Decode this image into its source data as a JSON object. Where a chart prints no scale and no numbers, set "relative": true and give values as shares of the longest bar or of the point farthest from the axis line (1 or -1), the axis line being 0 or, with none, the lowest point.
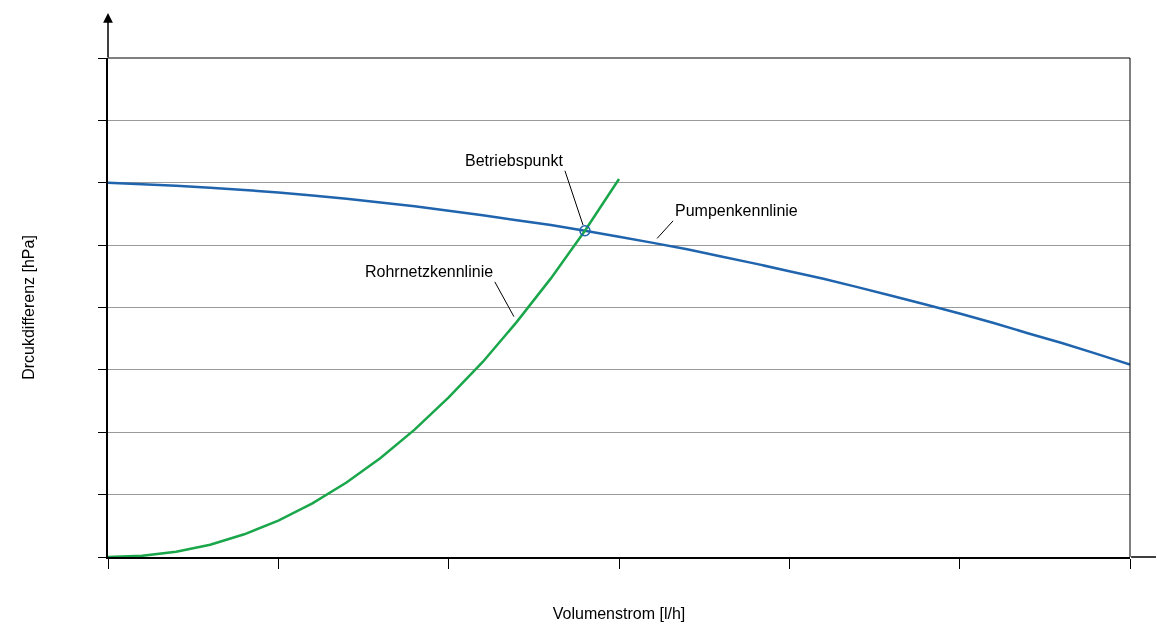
{
  "chart_data": {
    "type": "line",
    "relative": true,
    "xlabel": "Volumenstrom [l/h]",
    "ylabel": "Drcukdifferenz [hPa]",
    "categories": [
      null,
      null,
      null,
      null,
      null,
      null,
      null,
      null,
      null,
      null,
      null,
      null,
      null,
      null,
      null,
      null,
      null,
      null,
      null,
      null,
      null,
      null,
      null,
      null,
      null,
      null,
      null,
      null,
      null,
      null,
      null
    ],
    "series": [
      {
        "name": "Pumpenkennlinie",
        "color": "#1f64ad",
        "values": [
          0.99,
          0.986,
          0.982,
          0.977,
          0.971,
          0.964,
          0.956,
          0.948,
          0.938,
          0.928,
          0.916,
          0.904,
          0.891,
          0.878,
          0.863,
          0.847,
          0.831,
          0.814,
          0.795,
          0.776,
          0.756,
          0.736,
          0.714,
          0.691,
          0.668,
          0.644,
          0.619,
          0.592,
          0.566,
          0.538,
          0.509
        ]
      },
      {
        "name": "Rohrnetzkennlinie",
        "color": "#1aa64a",
        "values": [
          0,
          0.0031,
          0.0137,
          0.0324,
          0.06,
          0.096,
          0.142,
          0.197,
          0.262,
          0.337,
          0.422,
          0.516,
          0.622,
          0.737,
          0.863,
          1,
          null,
          null,
          null,
          null,
          null,
          null,
          null,
          null,
          null,
          null,
          null,
          null,
          null,
          null,
          null
        ]
      }
    ],
    "annotations": [
      "Betriebspunkt"
    ],
    "grid": "y",
    "legend": false,
    "tick_labels": false
  }
}
